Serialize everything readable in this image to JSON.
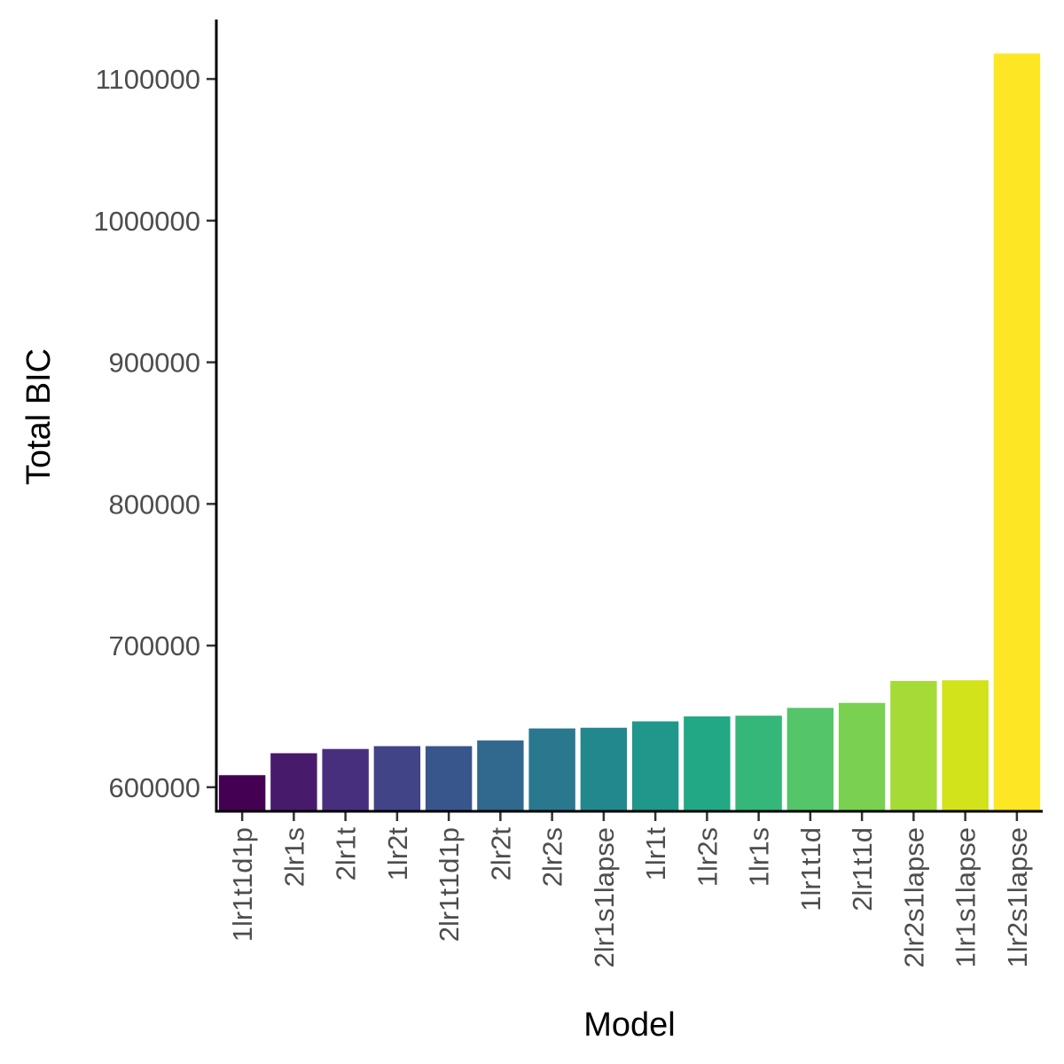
{
  "chart_data": {
    "type": "bar",
    "title": "",
    "xlabel": "Model",
    "ylabel": "Total BIC",
    "ylim": [
      583000,
      1142000
    ],
    "yticks": [
      600000,
      700000,
      800000,
      900000,
      1000000,
      1100000
    ],
    "ytick_labels": [
      "600000",
      "700000",
      "800000",
      "900000",
      "1000000",
      "1100000"
    ],
    "grid": false,
    "legend": "none",
    "categories": [
      "1lr1t1d1p",
      "2lr1s",
      "2lr1t",
      "1lr2t",
      "2lr1t1d1p",
      "2lr2t",
      "2lr2s",
      "2lr1s1lapse",
      "1lr1t",
      "1lr2s",
      "1lr1s",
      "1lr1t1d",
      "2lr1t1d",
      "2lr2s1lapse",
      "1lr1s1lapse",
      "1lr2s1lapse"
    ],
    "values": [
      608500,
      624000,
      627000,
      629000,
      629000,
      633000,
      641500,
      642000,
      646500,
      650000,
      650500,
      656000,
      659500,
      675000,
      675500,
      1118000
    ],
    "colors": [
      "#440154",
      "#481A6C",
      "#472F7D",
      "#414487",
      "#39568C",
      "#31688E",
      "#2A788E",
      "#23888E",
      "#1F988B",
      "#22A884",
      "#35B779",
      "#54C568",
      "#7AD151",
      "#A5DB36",
      "#D2E21B",
      "#FDE725"
    ]
  }
}
